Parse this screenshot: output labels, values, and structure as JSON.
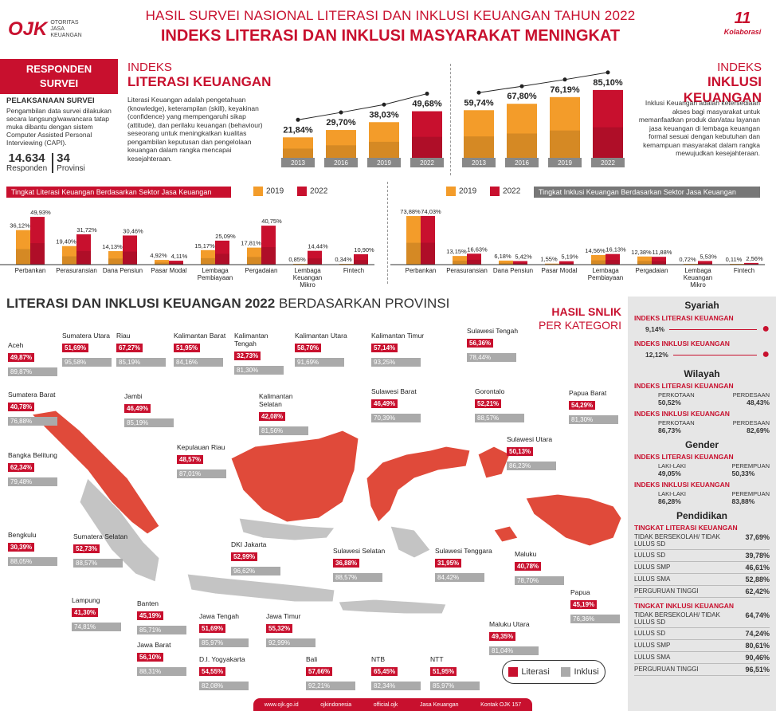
{
  "header": {
    "title1": "HASIL SURVEI NASIONAL LITERASI DAN INKLUSI KEUANGAN TAHUN 2022",
    "title2": "INDEKS LITERASI DAN INKLUSI MASYARAKAT MENINGKAT",
    "logo_text": "OJK",
    "logo_sub": [
      "OTORITAS",
      "JASA",
      "KEUANGAN"
    ],
    "kolab_num": "11",
    "kolab_text": "Kolaborasi"
  },
  "responden": {
    "box": [
      "RESPONDEN",
      "SURVEI"
    ],
    "heading": "PELAKSANAAN SURVEI",
    "desc": "Pengambilan data survei dilakukan secara langsung/wawancara tatap muka dibantu dengan sistem Computer Assisted Personal Interviewing (CAPI).",
    "count": "14.634",
    "count_label": "Responden",
    "prov": "34",
    "prov_label": "Provinsi"
  },
  "literasi": {
    "t1": "INDEKS",
    "t2": "LITERASI KEUANGAN",
    "desc": "Literasi Keuangan adalah pengetahuan (knowledge), keterampilan (skill), keyakinan (confidence) yang mempengaruhi sikap (attitude), dan perilaku keuangan (behaviour) seseorang untuk meningkatkan kualitas pengambilan keputusan dan pengelolaan keuangan dalam rangka mencapai kesejahteraan."
  },
  "inklusi": {
    "t1": "INDEKS",
    "t2": "INKLUSI KEUANGAN",
    "desc": "Inklusi Keuangan adalah ketersediaan akses bagi masyarakat untuk memanfaatkan produk dan/atau layanan jasa keuangan di lembaga keuangan formal sesuai dengan kebutuhan dan kemampuan masyarakat dalam rangka mewujudkan kesejahteraan."
  },
  "sector": {
    "lit_ribbon": "Tingkat Literasi Keuangan Berdasarkan Sektor Jasa Keuangan",
    "ink_ribbon": "Tingkat Inklusi Keuangan Berdasarkan Sektor Jasa Keuangan",
    "legend2019": "2019",
    "legend2022": "2022"
  },
  "chart_data": [
    {
      "type": "bar",
      "categories": [
        "2013",
        "2016",
        "2019",
        "2022"
      ],
      "values": [
        21.84,
        29.7,
        38.03,
        49.68
      ],
      "labels": [
        "21,84%",
        "29,70%",
        "38,03%",
        "49,68%"
      ]
    },
    {
      "type": "bar",
      "categories": [
        "2013",
        "2016",
        "2019",
        "2022"
      ],
      "values": [
        59.74,
        67.8,
        76.19,
        85.1
      ],
      "labels": [
        "59,74%",
        "67,80%",
        "76,19%",
        "85,10%"
      ]
    },
    {
      "type": "bar",
      "categories": [
        "Perbankan",
        "Perasuransian",
        "Dana Pensiun",
        "Pasar Modal",
        "Lembaga Pembiayaan",
        "Pergadaian",
        "Lembaga Keuangan Mikro",
        "Fintech"
      ],
      "series": [
        {
          "name": "2019",
          "values": [
            36.12,
            19.4,
            14.13,
            4.92,
            15.17,
            17.81,
            0.85,
            0.34
          ],
          "labels": [
            "36,12%",
            "19,40%",
            "14,13%",
            "4,92%",
            "15,17%",
            "17,81%",
            "0,85%",
            "0,34%"
          ]
        },
        {
          "name": "2022",
          "values": [
            49.93,
            31.72,
            30.46,
            4.11,
            25.09,
            40.75,
            14.44,
            10.9
          ],
          "labels": [
            "49,93%",
            "31,72%",
            "30,46%",
            "4,11%",
            "25,09%",
            "40,75%",
            "14,44%",
            "10,90%"
          ]
        }
      ]
    },
    {
      "type": "bar",
      "categories": [
        "Perbankan",
        "Perasuransian",
        "Dana Pensiun",
        "Pasar Modal",
        "Lembaga Pembiayaan",
        "Pergadaian",
        "Lembaga Keuangan Mikro",
        "Fintech"
      ],
      "series": [
        {
          "name": "2019",
          "values": [
            73.88,
            13.15,
            6.18,
            1.55,
            14.56,
            12.38,
            0.72,
            0.11
          ],
          "labels": [
            "73,88%",
            "13,15%",
            "6,18%",
            "1,55%",
            "14,56%",
            "12,38%",
            "0,72%",
            "0,11%"
          ]
        },
        {
          "name": "2022",
          "values": [
            74.03,
            16.63,
            5.42,
            5.19,
            16.13,
            11.88,
            5.53,
            2.56
          ],
          "labels": [
            "74,03%",
            "16,63%",
            "5,42%",
            "5,19%",
            "16,13%",
            "11,88%",
            "5,53%",
            "2,56%"
          ]
        }
      ]
    }
  ],
  "prov": {
    "title_b": "LITERASI DAN INKLUSI KEUANGAN 2022",
    "title_n": "BERDASARKAN PROVINSI",
    "snlik1": "HASIL SNLIK",
    "snlik2": "PER KATEGORI",
    "legend_lit": "Literasi",
    "legend_ink": "Inklusi",
    "items": [
      {
        "name": "Aceh",
        "lit": "49,87%",
        "ink": "89,87%"
      },
      {
        "name": "Sumatera Utara",
        "lit": "51,69%",
        "ink": "95,58%"
      },
      {
        "name": "Riau",
        "lit": "67,27%",
        "ink": "85,19%"
      },
      {
        "name": "Kalimantan Barat",
        "lit": "51,95%",
        "ink": "84,16%"
      },
      {
        "name": "Kalimantan Tengah",
        "lit": "32,73%",
        "ink": "81,30%"
      },
      {
        "name": "Kalimantan Utara",
        "lit": "58,70%",
        "ink": "91,69%"
      },
      {
        "name": "Kalimantan Timur",
        "lit": "57,14%",
        "ink": "93,25%"
      },
      {
        "name": "Sulawesi Tengah",
        "lit": "56,36%",
        "ink": "78,44%"
      },
      {
        "name": "Sumatera Barat",
        "lit": "40,78%",
        "ink": "76,88%"
      },
      {
        "name": "Jambi",
        "lit": "46,49%",
        "ink": "85,19%"
      },
      {
        "name": "Kalimantan Selatan",
        "lit": "42,08%",
        "ink": "81,56%"
      },
      {
        "name": "Sulawesi Barat",
        "lit": "46,49%",
        "ink": "70,39%"
      },
      {
        "name": "Gorontalo",
        "lit": "52,21%",
        "ink": "88,57%"
      },
      {
        "name": "Papua Barat",
        "lit": "54,29%",
        "ink": "81,30%"
      },
      {
        "name": "Kepulauan Riau",
        "lit": "48,57%",
        "ink": "87,01%"
      },
      {
        "name": "Bangka Belitung",
        "lit": "62,34%",
        "ink": "79,48%"
      },
      {
        "name": "Sulawesi Utara",
        "lit": "50,13%",
        "ink": "86,23%"
      },
      {
        "name": "Bengkulu",
        "lit": "30,39%",
        "ink": "88,05%"
      },
      {
        "name": "Sumatera Selatan",
        "lit": "52,73%",
        "ink": "88,57%"
      },
      {
        "name": "DKI Jakarta",
        "lit": "52,99%",
        "ink": "96,62%"
      },
      {
        "name": "Sulawesi Selatan",
        "lit": "36,88%",
        "ink": "88,57%"
      },
      {
        "name": "Sulawesi Tenggara",
        "lit": "31,95%",
        "ink": "84,42%"
      },
      {
        "name": "Maluku",
        "lit": "40,78%",
        "ink": "78,70%"
      },
      {
        "name": "Lampung",
        "lit": "41,30%",
        "ink": "74,81%"
      },
      {
        "name": "Banten",
        "lit": "45,19%",
        "ink": "85,71%"
      },
      {
        "name": "Jawa Tengah",
        "lit": "51,69%",
        "ink": "85,97%"
      },
      {
        "name": "Jawa Timur",
        "lit": "55,32%",
        "ink": "92,99%"
      },
      {
        "name": "Papua",
        "lit": "45,19%",
        "ink": "76,36%"
      },
      {
        "name": "Maluku Utara",
        "lit": "49,35%",
        "ink": "81,04%"
      },
      {
        "name": "Jawa Barat",
        "lit": "56,10%",
        "ink": "88,31%"
      },
      {
        "name": "D.I. Yogyakarta",
        "lit": "54,55%",
        "ink": "82,08%"
      },
      {
        "name": "Bali",
        "lit": "57,66%",
        "ink": "92,21%"
      },
      {
        "name": "NTB",
        "lit": "65,45%",
        "ink": "82,34%"
      },
      {
        "name": "NTT",
        "lit": "51,95%",
        "ink": "85,97%"
      }
    ]
  },
  "side": {
    "syariah": "Syariah",
    "syariah_lit_label": "INDEKS LITERASI KEUANGAN",
    "syariah_lit": "9,14%",
    "syariah_ink_label": "INDEKS INKLUSI KEUANGAN",
    "syariah_ink": "12,12%",
    "wilayah": "Wilayah",
    "w_lit_label": "INDEKS LITERASI KEUANGAN",
    "w_ink_label": "INDEKS INKLUSI KEUANGAN",
    "perkotaan": "PERKOTAAN",
    "perdesaan": "PERDESAAN",
    "w_lit_kota": "50,52%",
    "w_lit_desa": "48,43%",
    "w_ink_kota": "86,73%",
    "w_ink_desa": "82,69%",
    "gender": "Gender",
    "g_lit_label": "INDEKS LITERASI KEUANGAN",
    "g_ink_label": "INDEKS INKLUSI KEUANGAN",
    "laki": "LAKI-LAKI",
    "perempuan": "PEREMPUAN",
    "g_lit_l": "49,05%",
    "g_lit_p": "50,33%",
    "g_ink_l": "86,28%",
    "g_ink_p": "83,88%",
    "pendidikan": "Pendidikan",
    "p_lit_label": "TINGKAT LITERASI KEUANGAN",
    "p_ink_label": "TINGKAT INKLUSI KEUANGAN",
    "edu_lit": [
      [
        "TIDAK BERSEKOLAH/ TIDAK LULUS SD",
        "37,69%"
      ],
      [
        "LULUS SD",
        "39,78%"
      ],
      [
        "LULUS SMP",
        "46,61%"
      ],
      [
        "LULUS SMA",
        "52,88%"
      ],
      [
        "PERGURUAN TINGGI",
        "62,42%"
      ]
    ],
    "edu_ink": [
      [
        "TIDAK BERSEKOLAH/ TIDAK LULUS SD",
        "64,74%"
      ],
      [
        "LULUS SD",
        "74,24%"
      ],
      [
        "LULUS SMP",
        "80,61%"
      ],
      [
        "LULUS SMA",
        "90,46%"
      ],
      [
        "PERGURUAN TINGGI",
        "96,51%"
      ]
    ]
  },
  "footer": [
    "www.ojk.go.id",
    "ojkindonesia",
    "official.ojk",
    "Jasa Keuangan",
    "Kontak OJK 157"
  ]
}
